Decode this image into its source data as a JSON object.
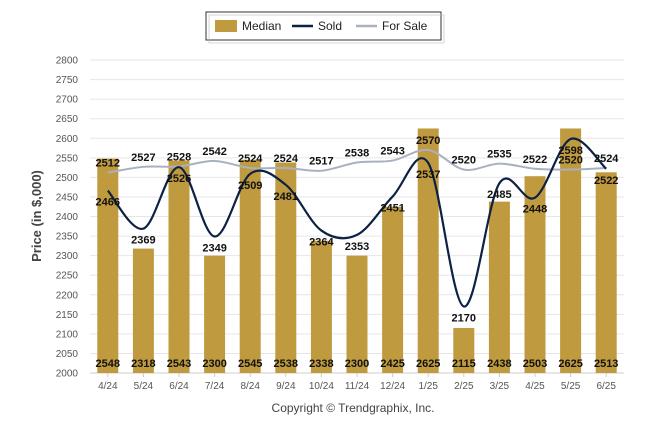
{
  "chart_data": {
    "type": "bar",
    "categories": [
      "4/24",
      "5/24",
      "6/24",
      "7/24",
      "8/24",
      "9/24",
      "10/24",
      "11/24",
      "12/24",
      "1/25",
      "2/25",
      "3/25",
      "4/25",
      "5/25",
      "6/25"
    ],
    "series": [
      {
        "name": "Median",
        "type": "bar",
        "color": "#c09a3f",
        "values": [
          2548,
          2318,
          2543,
          2300,
          2545,
          2538,
          2338,
          2300,
          2425,
          2625,
          2115,
          2438,
          2503,
          2625,
          2513
        ]
      },
      {
        "name": "Sold",
        "type": "line",
        "color": "#0d2143",
        "values": [
          2466,
          2369,
          2526,
          2349,
          2509,
          2481,
          2364,
          2353,
          2451,
          2537,
          2170,
          2485,
          2448,
          2598,
          2522
        ]
      },
      {
        "name": "For Sale",
        "type": "line",
        "color": "#a9b1c0",
        "values": [
          2512,
          2527,
          2528,
          2542,
          2524,
          2524,
          2517,
          2538,
          2543,
          2570,
          2520,
          2535,
          2522,
          2520,
          2524
        ]
      }
    ],
    "ylabel": "Price (in $,000)",
    "xlabel": "",
    "ylim": [
      2000,
      2800
    ],
    "yticks": [
      2000,
      2050,
      2100,
      2150,
      2200,
      2250,
      2300,
      2350,
      2400,
      2450,
      2500,
      2550,
      2600,
      2650,
      2700,
      2750,
      2800
    ],
    "grid": true,
    "legend_position": "top-center"
  },
  "footer": {
    "copyright": "Copyright © Trendgraphix, Inc."
  }
}
